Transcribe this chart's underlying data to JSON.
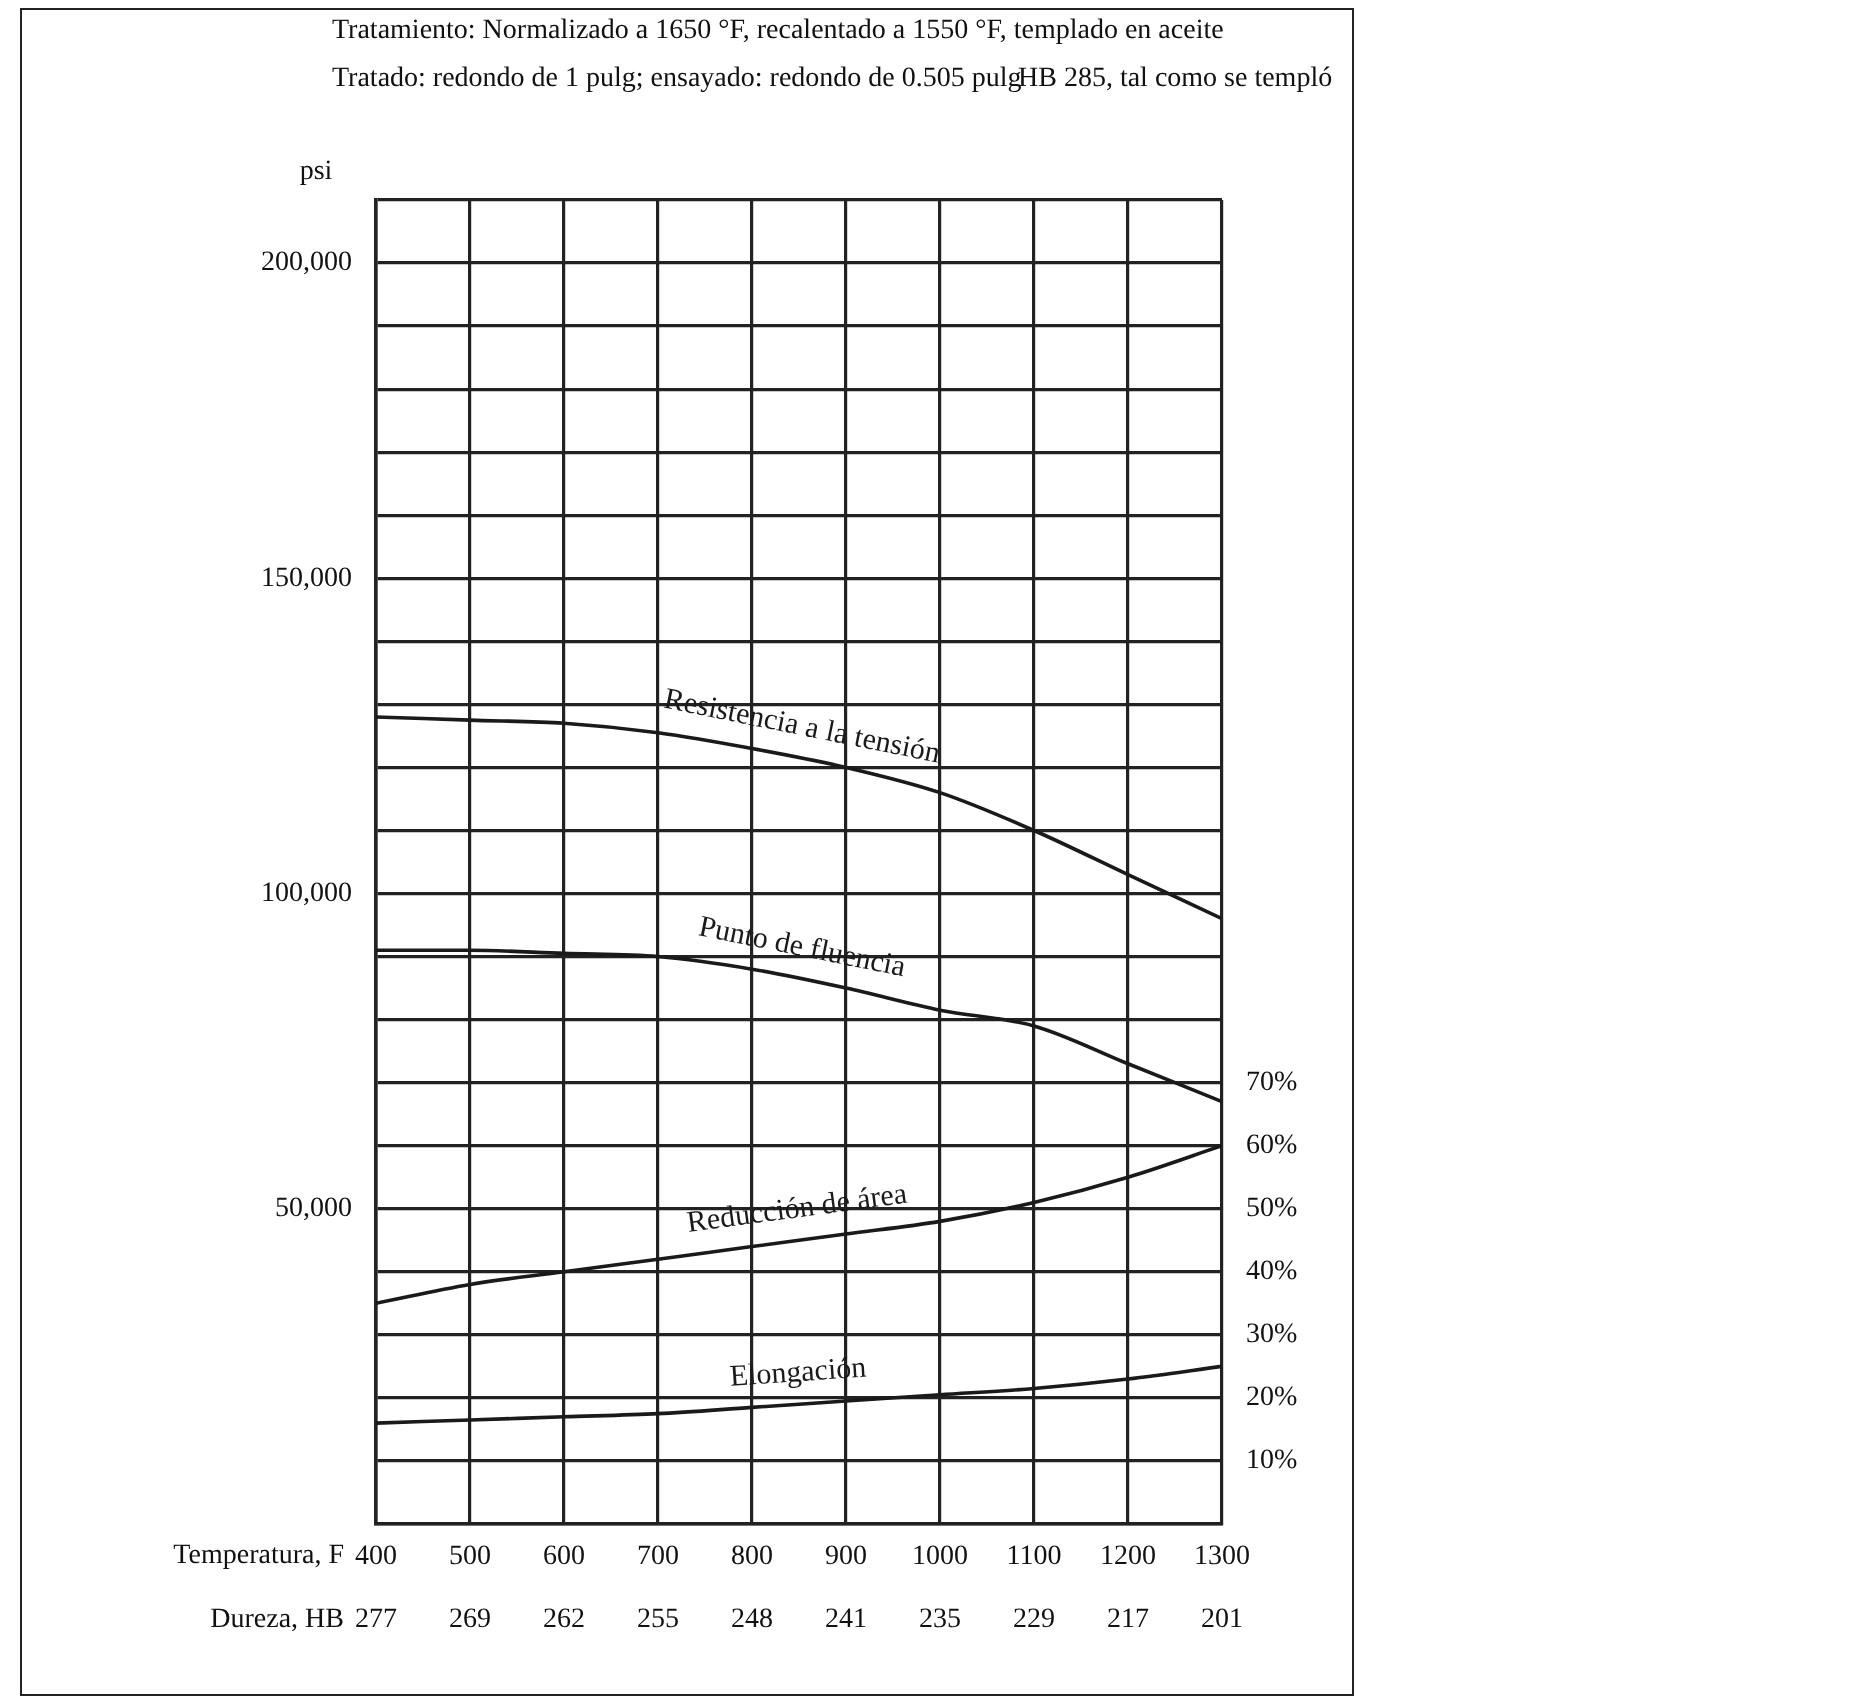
{
  "chart_data": {
    "type": "line",
    "title": "Tratamiento: Normalizado a 1650 °F, recalentado a 1550 °F, templado en aceite",
    "subtitle": "Tratado: redondo de 1 pulg; ensayado: redondo de 0.505 pulg",
    "annotations": [
      "HB 285, tal como se templó",
      "Dureza, HB",
      "277",
      "269",
      "262",
      "255",
      "248",
      "241",
      "235",
      "229",
      "217",
      "201"
    ],
    "xlabel": "Temperatura, F",
    "ylabel": "psi",
    "x": [
      400,
      500,
      600,
      700,
      800,
      900,
      1000,
      1100,
      1200,
      1300
    ],
    "xlim": [
      400,
      1300
    ],
    "xticks": [
      400,
      500,
      600,
      700,
      800,
      900,
      1000,
      1100,
      1200,
      1300
    ],
    "ylim": [
      0,
      210000
    ],
    "yticks": [
      {
        "value": 0,
        "label": null
      },
      {
        "value": 10000,
        "label": null
      },
      {
        "value": 20000,
        "label": null
      },
      {
        "value": 30000,
        "label": null
      },
      {
        "value": 40000,
        "label": null
      },
      {
        "value": 50000,
        "label": "50,000"
      },
      {
        "value": 60000,
        "label": null
      },
      {
        "value": 70000,
        "label": null
      },
      {
        "value": 80000,
        "label": null
      },
      {
        "value": 90000,
        "label": null
      },
      {
        "value": 100000,
        "label": "100,000"
      },
      {
        "value": 110000,
        "label": null
      },
      {
        "value": 120000,
        "label": null
      },
      {
        "value": 130000,
        "label": null
      },
      {
        "value": 140000,
        "label": null
      },
      {
        "value": 150000,
        "label": "150,000"
      },
      {
        "value": 160000,
        "label": null
      },
      {
        "value": 170000,
        "label": null
      },
      {
        "value": 180000,
        "label": null
      },
      {
        "value": 190000,
        "label": null
      },
      {
        "value": 200000,
        "label": "200,000"
      },
      {
        "value": 210000,
        "label": null
      }
    ],
    "y2lim": [
      0,
      210
    ],
    "y2ticks": [
      {
        "value": 10,
        "label": "10%"
      },
      {
        "value": 20,
        "label": "20%"
      },
      {
        "value": 30,
        "label": "30%"
      },
      {
        "value": 40,
        "label": "40%"
      },
      {
        "value": 50,
        "label": "50%"
      },
      {
        "value": 60,
        "label": "60%"
      },
      {
        "value": 70,
        "label": "70%"
      }
    ],
    "grid": "xy",
    "legend": false,
    "marker": "none",
    "line_style": "solid",
    "series": [
      {
        "name": "Resistencia a la tensión",
        "color": "#1a1a1a",
        "values": [
          128000,
          127500,
          127000,
          125500,
          123000,
          120000,
          116000,
          110000,
          103000,
          96000
        ]
      },
      {
        "name": "Punto de fluencia",
        "color": "#1a1a1a",
        "values": [
          91000,
          91000,
          90500,
          90000,
          88000,
          85000,
          81500,
          79000,
          73000,
          67000
        ]
      },
      {
        "name": "Reducción de área",
        "color": "#1a1a1a",
        "axis": "y2",
        "values": [
          35,
          38,
          40,
          42,
          44,
          46,
          48,
          51,
          55,
          60
        ]
      },
      {
        "name": "Elongación",
        "color": "#1a1a1a",
        "axis": "y2",
        "values": [
          16,
          16.5,
          17,
          17.5,
          18.5,
          19.5,
          20.5,
          21.5,
          23,
          25
        ]
      }
    ]
  }
}
